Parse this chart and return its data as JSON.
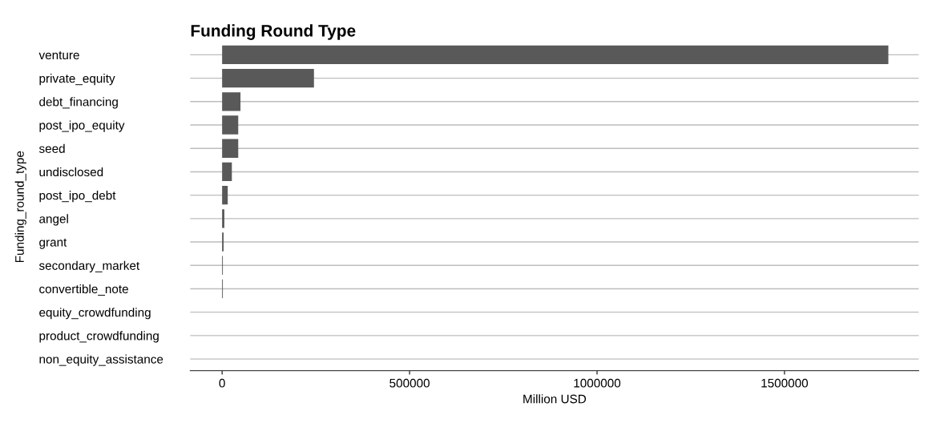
{
  "chart_data": {
    "type": "bar",
    "orientation": "horizontal",
    "title": "Funding Round Type",
    "xlabel": "Million USD",
    "ylabel": "Funding_round_type",
    "categories": [
      "venture",
      "private_equity",
      "debt_financing",
      "post_ipo_equity",
      "seed",
      "undisclosed",
      "post_ipo_debt",
      "angel",
      "grant",
      "secondary_market",
      "convertible_note",
      "equity_crowdfunding",
      "product_crowdfunding",
      "non_equity_assistance"
    ],
    "values": [
      1777000,
      245000,
      49000,
      43000,
      43000,
      26000,
      15000,
      6000,
      4000,
      2000,
      2000,
      0,
      0,
      0
    ],
    "color": "#595959",
    "xlim": [
      -85000,
      1858000
    ],
    "xticks": [
      0,
      500000,
      1000000,
      1500000
    ],
    "grid": "y"
  }
}
